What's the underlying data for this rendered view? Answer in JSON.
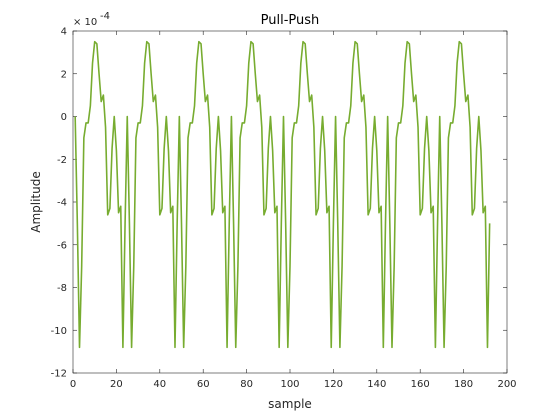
{
  "chart_data": {
    "type": "line",
    "title": "Pull-Push",
    "xlabel": "sample",
    "ylabel": "Amplitude",
    "y_exponent_label": "× 10",
    "y_exponent_power": "-4",
    "xlim": [
      0,
      200
    ],
    "ylim": [
      -12,
      4
    ],
    "x_ticks": [
      0,
      20,
      40,
      60,
      80,
      100,
      120,
      140,
      160,
      180,
      200
    ],
    "y_ticks": [
      -12,
      -10,
      -8,
      -6,
      -4,
      -2,
      0,
      2,
      4
    ],
    "grid": false,
    "line_color": "#77AC30",
    "period_samples": 24,
    "num_samples": 192,
    "cycle_values_e4": [
      0.0,
      -5.0,
      -10.8,
      -7.0,
      -1.0,
      -0.3,
      -0.3,
      0.5,
      2.5,
      3.5,
      3.4,
      2.0,
      0.7,
      1.0,
      -0.5,
      -4.6,
      -4.3,
      -1.5,
      0.0,
      -1.6,
      -4.5,
      -4.2,
      -10.8,
      -5.0
    ],
    "series": [
      {
        "name": "",
        "x_start": 1,
        "x_step": 1
      }
    ]
  }
}
